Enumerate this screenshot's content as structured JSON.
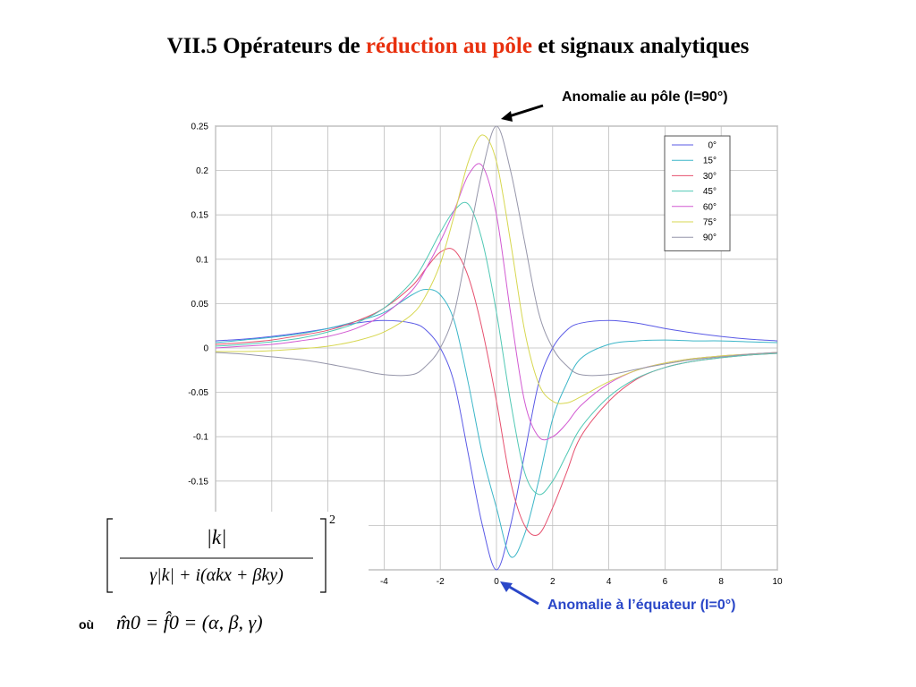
{
  "slide": {
    "title_prefix": "VII.5 Opérateurs de ",
    "title_highlight": "réduction au pôle",
    "title_suffix": " et signaux analytiques",
    "highlight_color": "#e8300e",
    "annotation_pole": "Anomalie au pôle (I=90°)",
    "annotation_equator": "Anomalie à l’équateur (I=0°)",
    "equator_color": "#2a47c8",
    "ou_label": "où",
    "formula_numerator": "|k|",
    "formula_denominator": "γ|k| + i(αkx + βky)",
    "formula_exponent": "2",
    "formula_line2": "m̂0 = f̂0 = (α, β, γ)"
  },
  "chart_data": {
    "type": "line",
    "title": "",
    "xlabel": "",
    "ylabel": "",
    "xlim": [
      -10,
      10
    ],
    "ylim": [
      -0.25,
      0.25
    ],
    "grid": true,
    "legend_position": "top-right",
    "x_ticks": [
      -4,
      -2,
      0,
      2,
      4,
      6,
      8,
      10
    ],
    "y_ticks": [
      0.25,
      0.2,
      0.15,
      0.1,
      0.05,
      0,
      -0.05,
      -0.1,
      -0.15
    ],
    "x": [
      -10,
      -9,
      -8,
      -7,
      -6,
      -5,
      -4,
      -3,
      -2.5,
      -2,
      -1.5,
      -1,
      -0.5,
      0,
      0.5,
      1,
      1.5,
      2,
      2.5,
      3,
      4,
      5,
      6,
      7,
      8,
      9,
      10
    ],
    "series": [
      {
        "name": "0°",
        "color": "#5a5ae6",
        "values": [
          0.008,
          0.01,
          0.013,
          0.017,
          0.022,
          0.028,
          0.031,
          0.028,
          0.02,
          0.0,
          -0.04,
          -0.12,
          -0.2,
          -0.25,
          -0.2,
          -0.12,
          -0.04,
          0.0,
          0.02,
          0.028,
          0.031,
          0.028,
          0.022,
          0.017,
          0.013,
          0.01,
          0.008
        ]
      },
      {
        "name": "15°",
        "color": "#3cb6c8",
        "values": [
          0.006,
          0.009,
          0.012,
          0.016,
          0.022,
          0.03,
          0.04,
          0.06,
          0.066,
          0.06,
          0.03,
          -0.04,
          -0.12,
          -0.18,
          -0.235,
          -0.21,
          -0.15,
          -0.08,
          -0.04,
          -0.012,
          0.004,
          0.008,
          0.009,
          0.008,
          0.008,
          0.007,
          0.006
        ]
      },
      {
        "name": "30°",
        "color": "#e6506e",
        "values": [
          0.004,
          0.006,
          0.009,
          0.014,
          0.02,
          0.03,
          0.045,
          0.07,
          0.09,
          0.108,
          0.11,
          0.08,
          0.02,
          -0.06,
          -0.15,
          -0.2,
          -0.21,
          -0.18,
          -0.14,
          -0.1,
          -0.06,
          -0.035,
          -0.022,
          -0.015,
          -0.011,
          -0.008,
          -0.006
        ]
      },
      {
        "name": "45°",
        "color": "#50c8b4",
        "values": [
          0.002,
          0.004,
          0.007,
          0.011,
          0.018,
          0.028,
          0.045,
          0.075,
          0.1,
          0.13,
          0.155,
          0.162,
          0.12,
          0.04,
          -0.06,
          -0.14,
          -0.165,
          -0.15,
          -0.12,
          -0.09,
          -0.055,
          -0.034,
          -0.022,
          -0.015,
          -0.011,
          -0.008,
          -0.006
        ]
      },
      {
        "name": "60°",
        "color": "#d25ad2",
        "values": [
          0.0,
          0.002,
          0.004,
          0.008,
          0.013,
          0.022,
          0.038,
          0.065,
          0.09,
          0.12,
          0.155,
          0.195,
          0.205,
          0.15,
          0.04,
          -0.06,
          -0.1,
          -0.1,
          -0.085,
          -0.065,
          -0.04,
          -0.025,
          -0.017,
          -0.012,
          -0.009,
          -0.007,
          -0.005
        ]
      },
      {
        "name": "75°",
        "color": "#d7d750",
        "values": [
          -0.004,
          -0.004,
          -0.003,
          -0.001,
          0.002,
          0.008,
          0.018,
          0.038,
          0.06,
          0.095,
          0.15,
          0.21,
          0.24,
          0.21,
          0.12,
          0.02,
          -0.04,
          -0.06,
          -0.062,
          -0.055,
          -0.038,
          -0.025,
          -0.017,
          -0.012,
          -0.009,
          -0.007,
          -0.005
        ]
      },
      {
        "name": "90°",
        "color": "#9696aa",
        "values": [
          -0.005,
          -0.007,
          -0.01,
          -0.013,
          -0.018,
          -0.024,
          -0.03,
          -0.03,
          -0.02,
          0.0,
          0.04,
          0.12,
          0.2,
          0.25,
          0.2,
          0.12,
          0.04,
          0.0,
          -0.02,
          -0.03,
          -0.03,
          -0.024,
          -0.018,
          -0.013,
          -0.01,
          -0.007,
          -0.005
        ]
      }
    ]
  }
}
